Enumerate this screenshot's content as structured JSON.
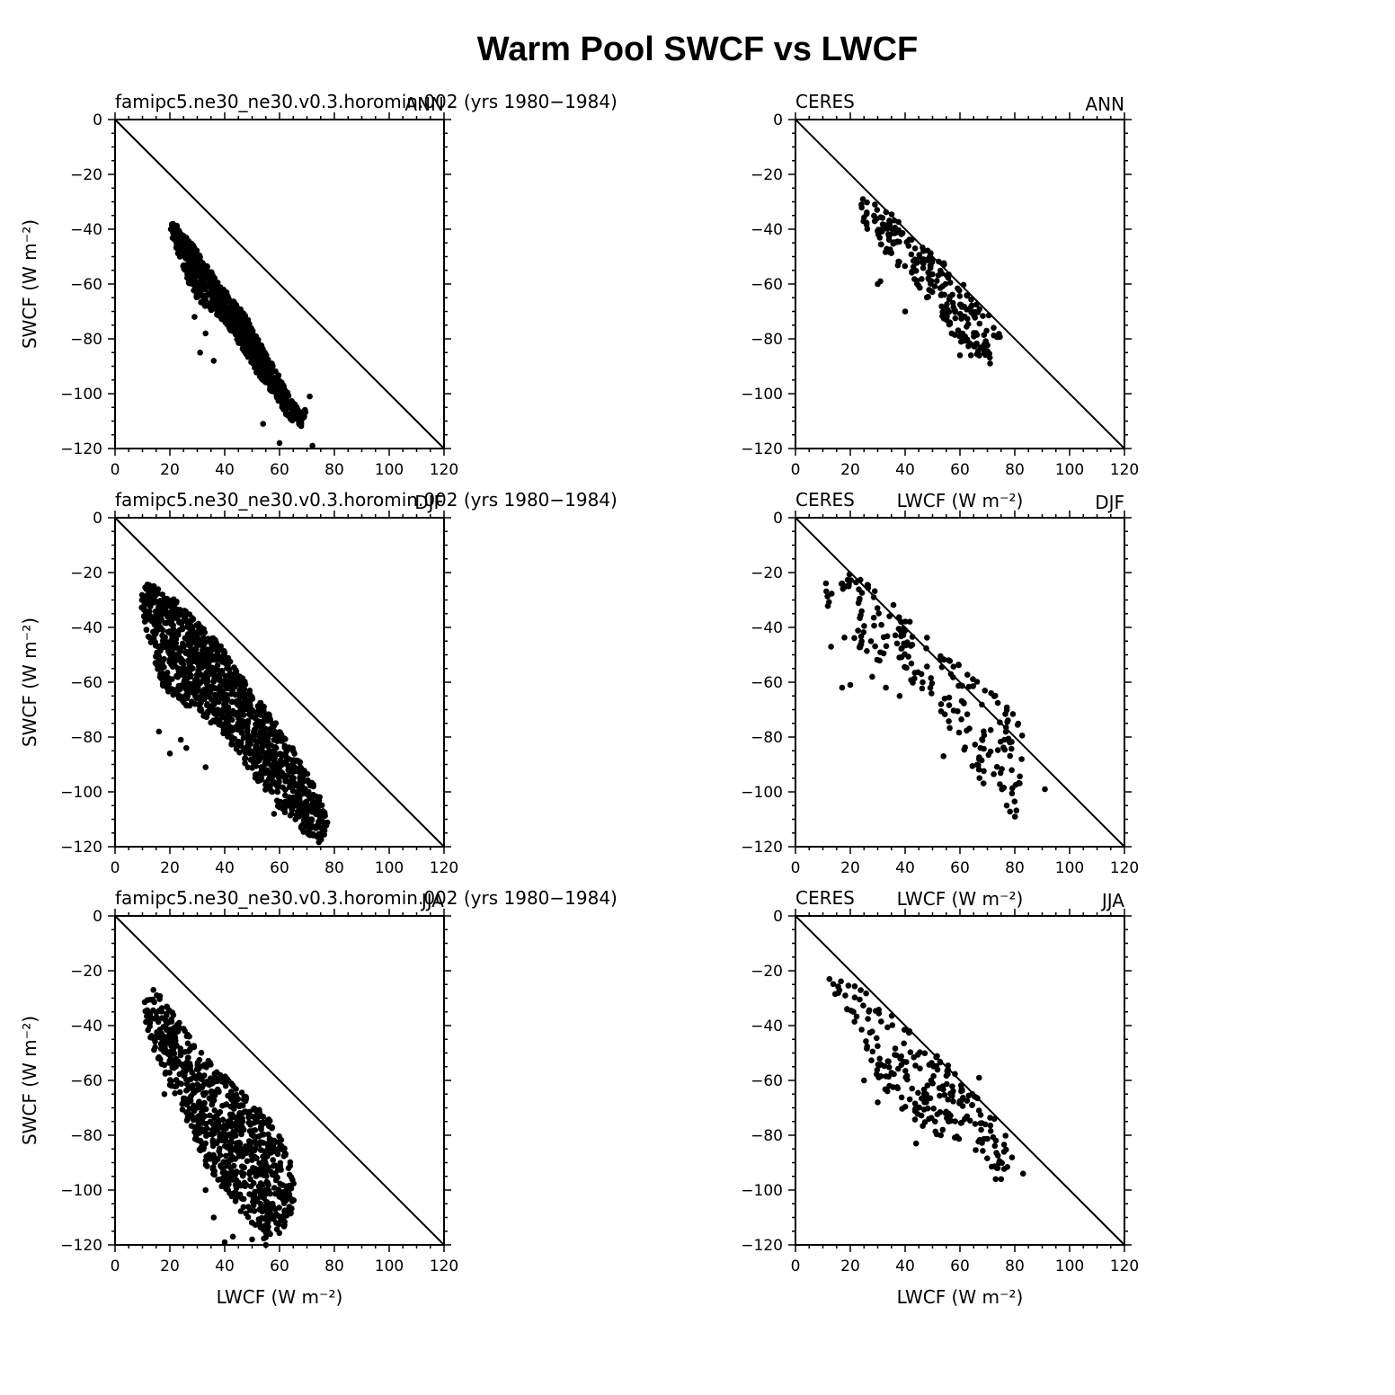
{
  "figure": {
    "title": "Warm Pool SWCF vs LWCF"
  },
  "chart_data": [
    {
      "type": "scatter",
      "left_label": "famipc5.ne30_ne30.v0.3.horomin.002 (yrs 1980−1984)",
      "right_label": "ANN",
      "xlabel": "",
      "ylabel": "SWCF (W m⁻²)",
      "xlim": [
        0,
        120
      ],
      "ylim": [
        -120,
        0
      ],
      "xticks": [
        "0",
        "20",
        "40",
        "60",
        "80",
        "100",
        "120"
      ],
      "yticks": [
        "0",
        "−20",
        "−40",
        "−60",
        "−80",
        "−100",
        "−120"
      ],
      "reference_line": [
        [
          0,
          0
        ],
        [
          120,
          -120
        ]
      ],
      "cloud": [
        [
          20,
          -38
        ],
        [
          22,
          -38
        ],
        [
          25,
          -42
        ],
        [
          28,
          -45
        ],
        [
          30,
          -48
        ],
        [
          32,
          -52
        ],
        [
          35,
          -55
        ],
        [
          38,
          -60
        ],
        [
          40,
          -62
        ],
        [
          42,
          -65
        ],
        [
          45,
          -68
        ],
        [
          48,
          -72
        ],
        [
          50,
          -76
        ],
        [
          52,
          -80
        ],
        [
          55,
          -85
        ],
        [
          58,
          -90
        ],
        [
          60,
          -94
        ],
        [
          62,
          -98
        ],
        [
          65,
          -103
        ],
        [
          68,
          -107
        ],
        [
          70,
          -105
        ],
        [
          68,
          -112
        ],
        [
          64,
          -110
        ],
        [
          60,
          -104
        ],
        [
          56,
          -98
        ],
        [
          52,
          -93
        ],
        [
          48,
          -86
        ],
        [
          44,
          -80
        ],
        [
          40,
          -74
        ],
        [
          36,
          -70
        ],
        [
          32,
          -68
        ],
        [
          28,
          -63
        ],
        [
          26,
          -58
        ],
        [
          24,
          -52
        ],
        [
          22,
          -46
        ],
        [
          20,
          -41
        ]
      ],
      "n_points": 900,
      "seed": 11,
      "extra_points": [
        [
          31,
          -85
        ],
        [
          33,
          -78
        ],
        [
          36,
          -88
        ],
        [
          29,
          -72
        ],
        [
          72,
          -119
        ],
        [
          60,
          -118
        ],
        [
          67,
          -109
        ],
        [
          54,
          -111
        ],
        [
          71,
          -101
        ]
      ]
    },
    {
      "type": "scatter",
      "left_label": "CERES",
      "right_label": "ANN",
      "xlabel": "LWCF (W m⁻²)",
      "ylabel": "",
      "xlim": [
        0,
        120
      ],
      "ylim": [
        -120,
        0
      ],
      "xticks": [
        "0",
        "20",
        "40",
        "60",
        "80",
        "100",
        "120"
      ],
      "yticks": [
        "0",
        "−20",
        "−40",
        "−60",
        "−80",
        "−100",
        "−120"
      ],
      "reference_line": [
        [
          0,
          0
        ],
        [
          120,
          -120
        ]
      ],
      "cloud": [
        [
          22,
          -28
        ],
        [
          28,
          -30
        ],
        [
          35,
          -34
        ],
        [
          42,
          -42
        ],
        [
          50,
          -48
        ],
        [
          58,
          -56
        ],
        [
          65,
          -64
        ],
        [
          72,
          -72
        ],
        [
          75,
          -78
        ],
        [
          72,
          -88
        ],
        [
          66,
          -86
        ],
        [
          60,
          -82
        ],
        [
          55,
          -74
        ],
        [
          48,
          -66
        ],
        [
          42,
          -58
        ],
        [
          36,
          -52
        ],
        [
          30,
          -46
        ],
        [
          26,
          -40
        ],
        [
          22,
          -32
        ]
      ],
      "n_points": 240,
      "seed": 23,
      "extra_points": [
        [
          30,
          -60
        ],
        [
          31,
          -59
        ],
        [
          60,
          -86
        ],
        [
          64,
          -86
        ],
        [
          71,
          -89
        ],
        [
          40,
          -70
        ],
        [
          57,
          -78
        ]
      ]
    },
    {
      "type": "scatter",
      "left_label": "famipc5.ne30_ne30.v0.3.horomin.002 (yrs 1980−1984)",
      "right_label": "DJF",
      "xlabel": "",
      "ylabel": "SWCF (W m⁻²)",
      "xlim": [
        0,
        120
      ],
      "ylim": [
        -120,
        0
      ],
      "xticks": [
        "0",
        "20",
        "40",
        "60",
        "80",
        "100",
        "120"
      ],
      "yticks": [
        "0",
        "−20",
        "−40",
        "−60",
        "−80",
        "−100",
        "−120"
      ],
      "reference_line": [
        [
          0,
          0
        ],
        [
          120,
          -120
        ]
      ],
      "cloud": [
        [
          9,
          -26
        ],
        [
          12,
          -24
        ],
        [
          16,
          -25
        ],
        [
          22,
          -30
        ],
        [
          30,
          -38
        ],
        [
          38,
          -46
        ],
        [
          45,
          -56
        ],
        [
          52,
          -66
        ],
        [
          60,
          -76
        ],
        [
          66,
          -86
        ],
        [
          72,
          -96
        ],
        [
          76,
          -104
        ],
        [
          78,
          -112
        ],
        [
          76,
          -119
        ],
        [
          72,
          -118
        ],
        [
          66,
          -112
        ],
        [
          58,
          -104
        ],
        [
          52,
          -96
        ],
        [
          46,
          -88
        ],
        [
          40,
          -80
        ],
        [
          34,
          -74
        ],
        [
          28,
          -70
        ],
        [
          22,
          -66
        ],
        [
          16,
          -60
        ],
        [
          14,
          -50
        ],
        [
          11,
          -40
        ],
        [
          9,
          -32
        ]
      ],
      "n_points": 1300,
      "seed": 37,
      "extra_points": [
        [
          20,
          -86
        ],
        [
          26,
          -84
        ],
        [
          33,
          -91
        ],
        [
          16,
          -78
        ],
        [
          24,
          -81
        ],
        [
          58,
          -108
        ]
      ]
    },
    {
      "type": "scatter",
      "left_label": "CERES",
      "right_label": "DJF",
      "xlabel": "LWCF (W m⁻²)",
      "ylabel": "",
      "xlim": [
        0,
        120
      ],
      "ylim": [
        -120,
        0
      ],
      "xticks": [
        "0",
        "20",
        "40",
        "60",
        "80",
        "100",
        "120"
      ],
      "yticks": [
        "0",
        "−20",
        "−40",
        "−60",
        "−80",
        "−100",
        "−120"
      ],
      "reference_line": [
        [
          0,
          0
        ],
        [
          120,
          -120
        ]
      ],
      "cloud": [
        [
          10,
          -18
        ],
        [
          20,
          -20
        ],
        [
          30,
          -26
        ],
        [
          40,
          -36
        ],
        [
          50,
          -42
        ],
        [
          60,
          -54
        ],
        [
          70,
          -62
        ],
        [
          80,
          -72
        ],
        [
          84,
          -80
        ],
        [
          82,
          -100
        ],
        [
          80,
          -110
        ],
        [
          74,
          -104
        ],
        [
          66,
          -94
        ],
        [
          58,
          -80
        ],
        [
          50,
          -68
        ],
        [
          40,
          -58
        ],
        [
          30,
          -52
        ],
        [
          20,
          -46
        ],
        [
          14,
          -40
        ],
        [
          10,
          -28
        ]
      ],
      "n_points": 210,
      "seed": 51,
      "extra_points": [
        [
          17,
          -62
        ],
        [
          20,
          -61
        ],
        [
          28,
          -58
        ],
        [
          38,
          -65
        ],
        [
          54,
          -87
        ],
        [
          91,
          -99
        ],
        [
          13,
          -47
        ],
        [
          33,
          -62
        ]
      ]
    },
    {
      "type": "scatter",
      "left_label": "famipc5.ne30_ne30.v0.3.horomin.002 (yrs 1980−1984)",
      "right_label": "JJA",
      "xlabel": "LWCF (W m⁻²)",
      "ylabel": "SWCF (W m⁻²)",
      "xlim": [
        0,
        120
      ],
      "ylim": [
        -120,
        0
      ],
      "xticks": [
        "0",
        "20",
        "40",
        "60",
        "80",
        "100",
        "120"
      ],
      "yticks": [
        "0",
        "−20",
        "−40",
        "−60",
        "−80",
        "−100",
        "−120"
      ],
      "reference_line": [
        [
          0,
          0
        ],
        [
          120,
          -120
        ]
      ],
      "cloud": [
        [
          11,
          -30
        ],
        [
          16,
          -28
        ],
        [
          22,
          -36
        ],
        [
          28,
          -44
        ],
        [
          35,
          -54
        ],
        [
          42,
          -60
        ],
        [
          50,
          -68
        ],
        [
          58,
          -76
        ],
        [
          64,
          -88
        ],
        [
          66,
          -98
        ],
        [
          65,
          -108
        ],
        [
          60,
          -116
        ],
        [
          54,
          -118
        ],
        [
          48,
          -112
        ],
        [
          42,
          -102
        ],
        [
          36,
          -96
        ],
        [
          30,
          -86
        ],
        [
          24,
          -70
        ],
        [
          18,
          -58
        ],
        [
          13,
          -46
        ],
        [
          10,
          -36
        ]
      ],
      "n_points": 850,
      "seed": 63,
      "extra_points": [
        [
          14,
          -27
        ],
        [
          17,
          -54
        ],
        [
          18,
          -65
        ],
        [
          40,
          -119
        ],
        [
          43,
          -117
        ],
        [
          50,
          -118
        ],
        [
          55,
          -120
        ],
        [
          33,
          -100
        ],
        [
          36,
          -110
        ]
      ]
    },
    {
      "type": "scatter",
      "left_label": "CERES",
      "right_label": "JJA",
      "xlabel": "LWCF (W m⁻²)",
      "ylabel": "",
      "xlim": [
        0,
        120
      ],
      "ylim": [
        -120,
        0
      ],
      "xticks": [
        "0",
        "20",
        "40",
        "60",
        "80",
        "100",
        "120"
      ],
      "yticks": [
        "0",
        "−20",
        "−40",
        "−60",
        "−80",
        "−100",
        "−120"
      ],
      "reference_line": [
        [
          0,
          0
        ],
        [
          120,
          -120
        ]
      ],
      "cloud": [
        [
          11,
          -19
        ],
        [
          18,
          -22
        ],
        [
          28,
          -30
        ],
        [
          38,
          -38
        ],
        [
          46,
          -44
        ],
        [
          54,
          -52
        ],
        [
          62,
          -60
        ],
        [
          70,
          -70
        ],
        [
          78,
          -82
        ],
        [
          80,
          -92
        ],
        [
          76,
          -96
        ],
        [
          70,
          -90
        ],
        [
          62,
          -82
        ],
        [
          52,
          -80
        ],
        [
          44,
          -76
        ],
        [
          38,
          -70
        ],
        [
          30,
          -62
        ],
        [
          22,
          -40
        ],
        [
          14,
          -28
        ],
        [
          11,
          -22
        ]
      ],
      "n_points": 230,
      "seed": 79,
      "extra_points": [
        [
          73,
          -96
        ],
        [
          75,
          -96
        ],
        [
          83,
          -94
        ],
        [
          44,
          -83
        ],
        [
          53,
          -80
        ],
        [
          67,
          -59
        ],
        [
          25,
          -60
        ],
        [
          30,
          -68
        ]
      ]
    }
  ]
}
